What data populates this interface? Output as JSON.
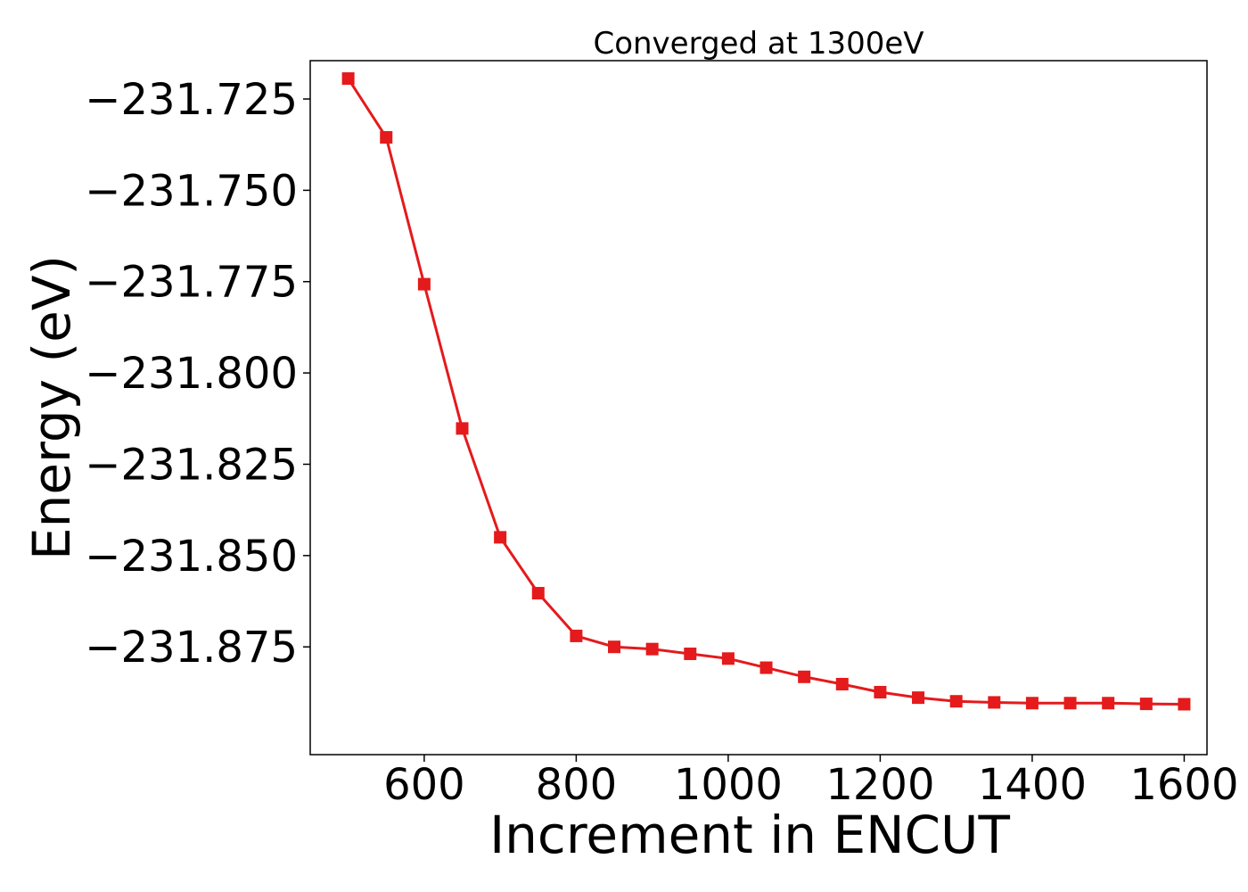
{
  "chart_data": {
    "type": "line",
    "title": "Converged at 1300eV",
    "xlabel": "Increment in ENCUT",
    "ylabel": "Energy (eV)",
    "xlim": [
      450,
      1630
    ],
    "ylim": [
      -231.9045,
      -231.7145
    ],
    "x_ticks": [
      600,
      800,
      1000,
      1200,
      1400,
      1600
    ],
    "y_ticks": [
      -231.725,
      -231.75,
      -231.775,
      -231.8,
      -231.825,
      -231.85,
      -231.875
    ],
    "x_tick_labels": [
      "600",
      "800",
      "1000",
      "1200",
      "1400",
      "1600"
    ],
    "y_tick_labels": [
      "−231.725",
      "−231.750",
      "−231.775",
      "−231.800",
      "−231.825",
      "−231.850",
      "−231.875"
    ],
    "grid": false,
    "series": [
      {
        "color": "#e41a1c",
        "marker": "square",
        "x": [
          500,
          550,
          600,
          650,
          700,
          750,
          800,
          850,
          900,
          950,
          1000,
          1050,
          1100,
          1150,
          1200,
          1250,
          1300,
          1350,
          1400,
          1450,
          1500,
          1550,
          1600
        ],
        "y": [
          -231.7194,
          -231.7355,
          -231.7757,
          -231.8152,
          -231.845,
          -231.8603,
          -231.872,
          -231.875,
          -231.8756,
          -231.8769,
          -231.8782,
          -231.8807,
          -231.8832,
          -231.8852,
          -231.8874,
          -231.8889,
          -231.8899,
          -231.8902,
          -231.8904,
          -231.8904,
          -231.8904,
          -231.8906,
          -231.8907
        ]
      }
    ]
  }
}
